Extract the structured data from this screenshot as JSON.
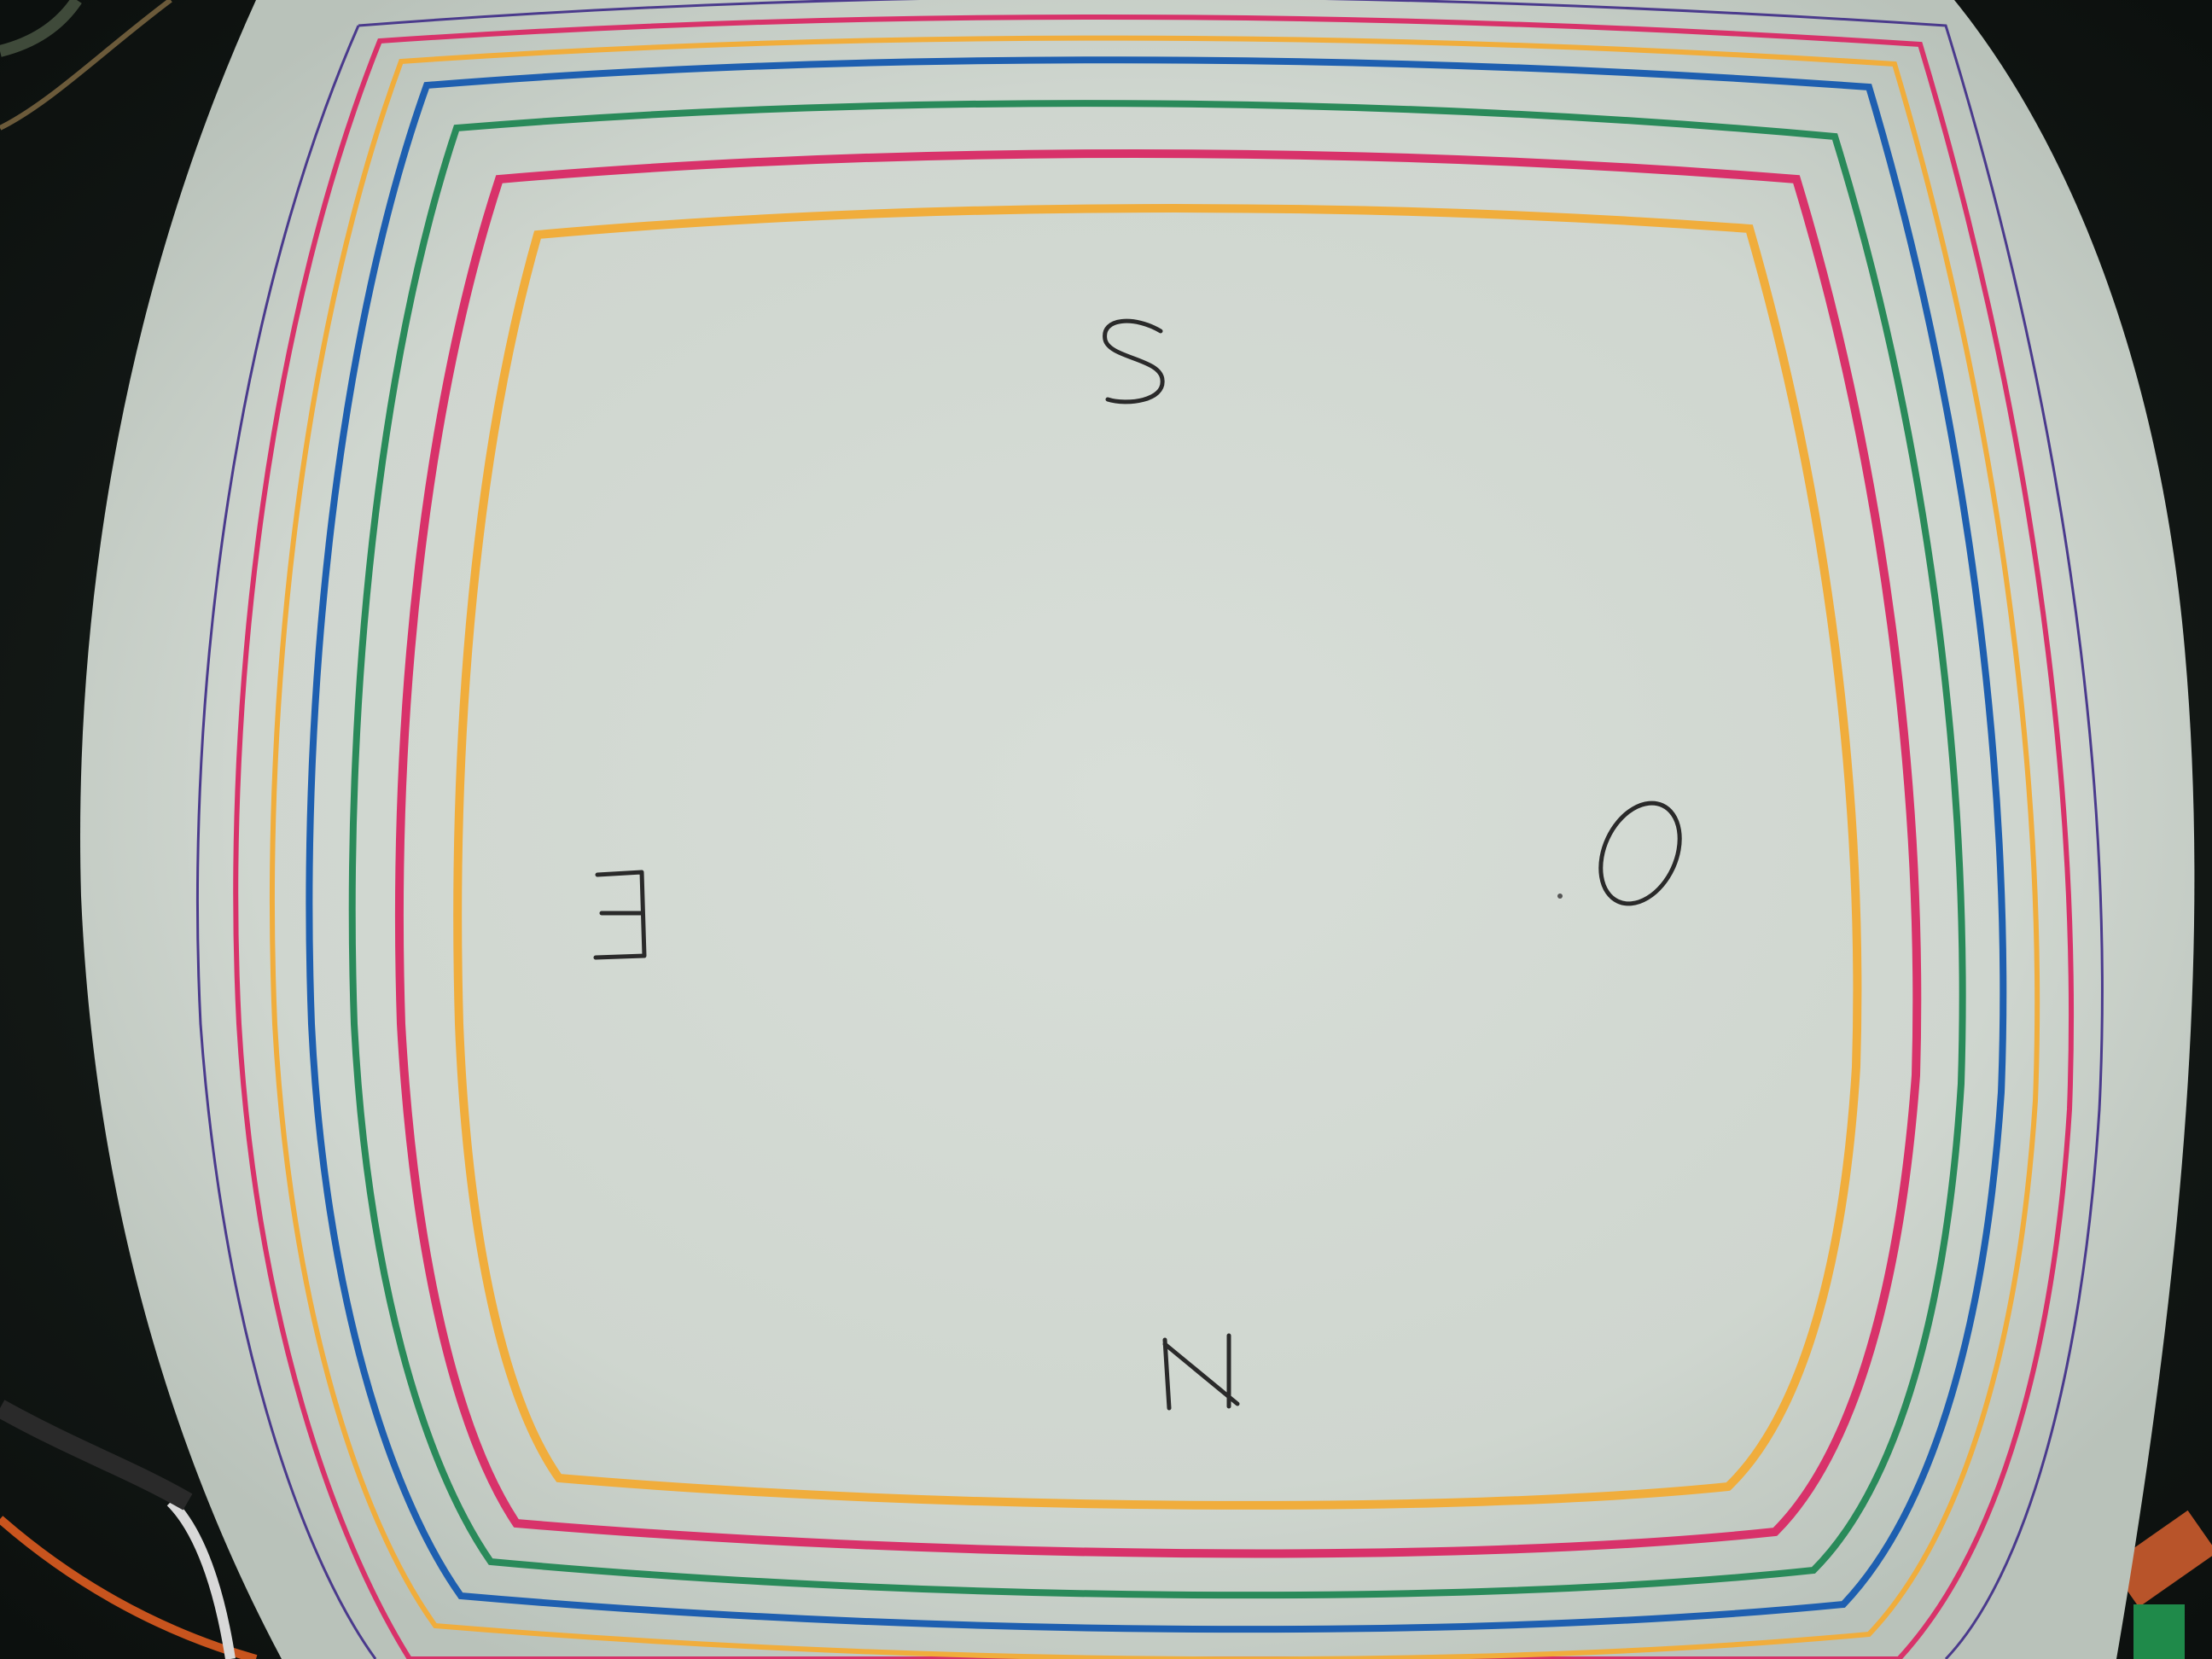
{
  "photo": {
    "subject": "fisheye-calibration-sheet",
    "paper_color": "#d6dcd6",
    "background_color": "#151a17",
    "frame_colors": {
      "purple": "#4a3a8c",
      "pink": "#d8326a",
      "orange": "#f0ad3c",
      "blue": "#1e5fb0",
      "green": "#2a8a5a"
    },
    "handwritten_letters": {
      "top": "S",
      "right": "O",
      "bottom": "N",
      "left": "E"
    }
  }
}
